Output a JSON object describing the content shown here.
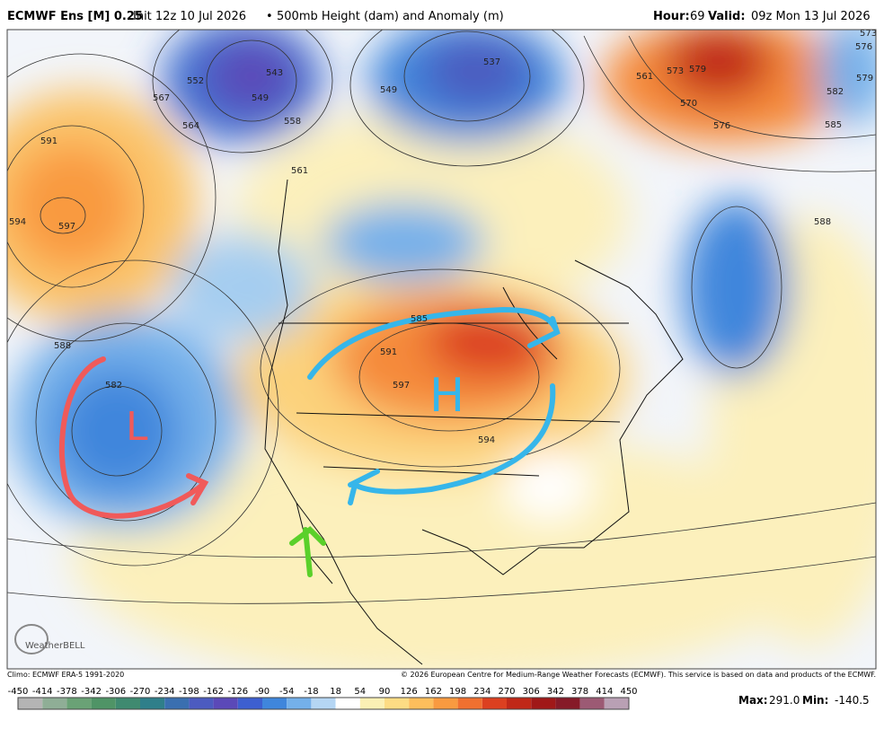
{
  "header": {
    "model": "ECMWF Ens [M] 0.25",
    "init": "Init 12z 10 Jul 2026",
    "bullet": "•",
    "product": "500mb Height (dam) and Anomaly (m)",
    "hour_label": "Hour:",
    "hour": 69,
    "valid_label": "Valid:",
    "valid": "09z Mon 13 Jul 2026"
  },
  "map": {
    "high": "H",
    "low": "L",
    "logo": "WeatherBELL",
    "contour_labels": [
      591,
      597,
      594,
      588,
      582,
      567,
      564,
      552,
      549,
      558,
      561,
      585,
      591,
      597,
      594,
      573,
      579,
      570,
      576,
      585,
      582,
      579,
      576,
      573,
      561,
      588,
      549,
      537,
      543
    ]
  },
  "footer": {
    "climo": "Climo: ECMWF ERA-5 1991-2020",
    "copyright": "© 2026 European Centre for Medium-Range Weather Forecasts (ECMWF). This service is based on data and products of the ECMWF.",
    "max_label": "Max:",
    "max": {
      "value": 291,
      "label": "291.0"
    },
    "min_label": "Min:",
    "min": -140.5
  },
  "colorbar": {
    "ticks": [
      -450,
      -414,
      -378,
      -342,
      -306,
      -270,
      -234,
      -198,
      -162,
      -126,
      -90,
      -54,
      -18,
      18,
      54,
      90,
      126,
      162,
      198,
      234,
      270,
      306,
      342,
      378,
      414,
      450
    ],
    "colors": [
      "#b4b4b4",
      "#8fae96",
      "#6aa276",
      "#4f9466",
      "#3f8a70",
      "#2f7f8a",
      "#3a6fb0",
      "#4c5bc0",
      "#5b49b8",
      "#3d5fd0",
      "#3f86dc",
      "#74b0ea",
      "#b5d6f4",
      "#ffffff",
      "#fbf0b4",
      "#fddc84",
      "#fdbe5c",
      "#f99a40",
      "#f07030",
      "#dc4020",
      "#c02818",
      "#a01818",
      "#861a28",
      "#9c5a74",
      "#b9a0b4"
    ]
  }
}
